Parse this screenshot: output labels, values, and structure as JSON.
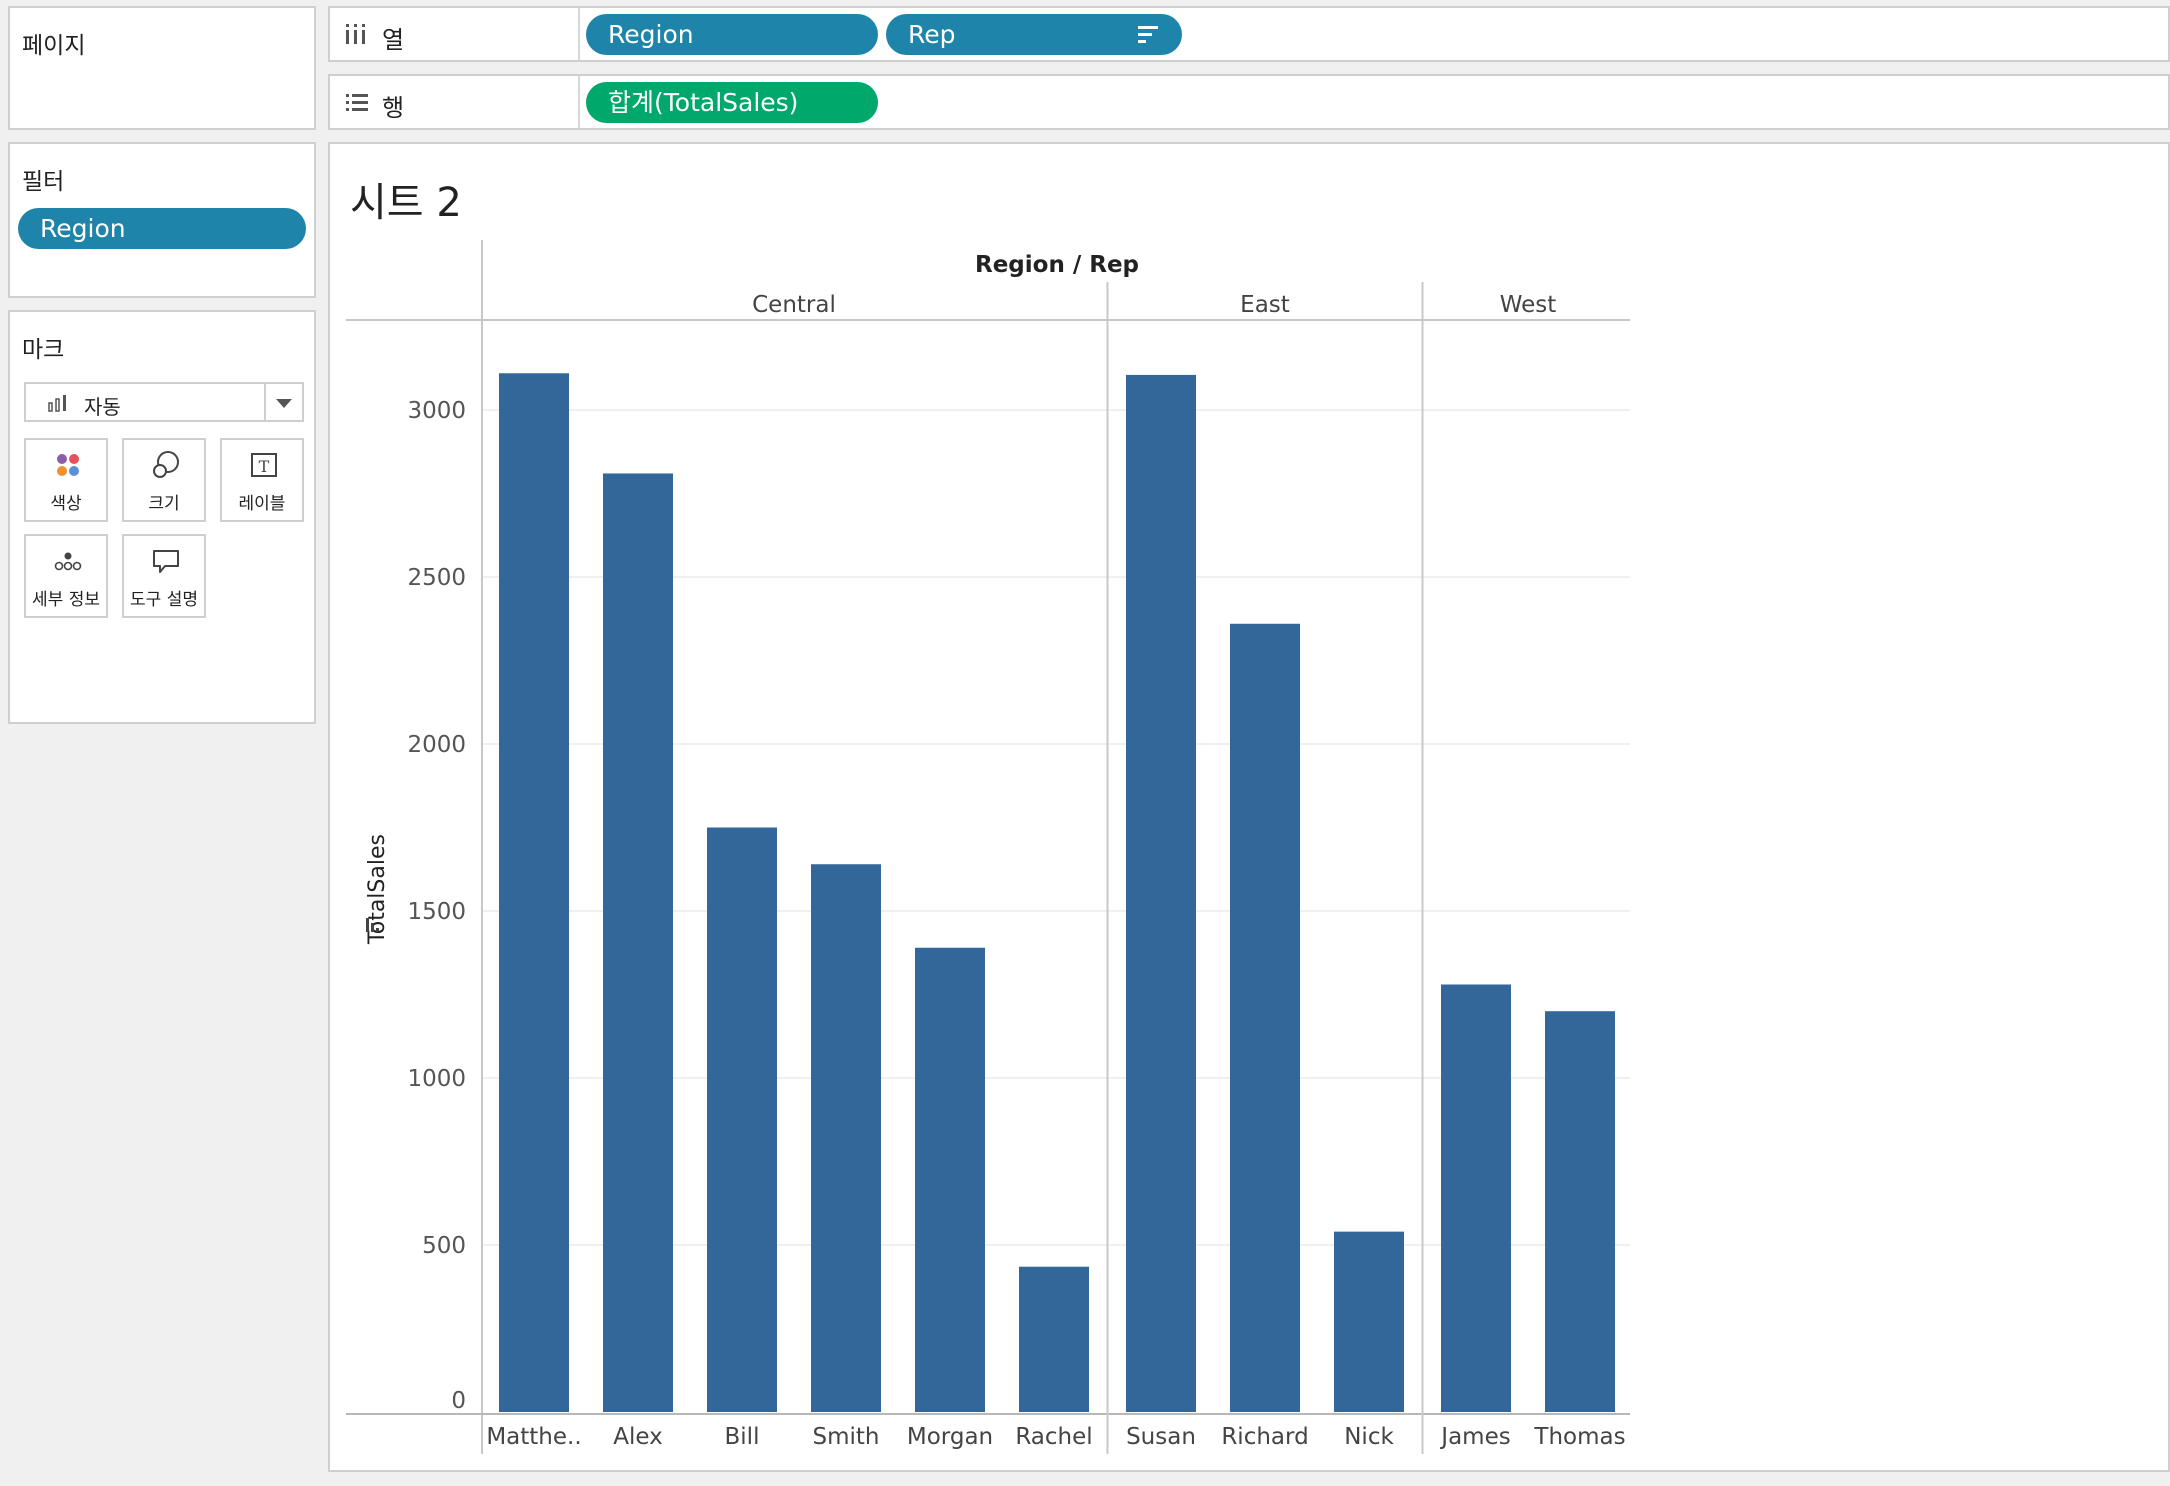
{
  "pages_shelf": {
    "title": "페이지"
  },
  "filters_shelf": {
    "title": "필터",
    "pills": [
      "Region"
    ]
  },
  "marks": {
    "title": "마크",
    "type": "자동",
    "type_icon": "bar-chart-icon",
    "cards": [
      {
        "label": "색상",
        "icon": "color-dots-icon"
      },
      {
        "label": "크기",
        "icon": "size-circles-icon"
      },
      {
        "label": "레이블",
        "icon": "text-label-icon"
      },
      {
        "label": "세부 정보",
        "icon": "detail-dots-icon"
      },
      {
        "label": "도구 설명",
        "icon": "tooltip-bubble-icon"
      }
    ]
  },
  "columns_shelf": {
    "label": "열",
    "icon": "columns-icon",
    "pills": [
      "Region",
      "Rep"
    ],
    "sort_icon": "sort-descending-icon"
  },
  "rows_shelf": {
    "label": "행",
    "icon": "rows-icon",
    "pills": [
      "합계(TotalSales)"
    ]
  },
  "sheet": {
    "title": "시트 2"
  },
  "colors": {
    "bar": "#336699",
    "pill_blue": "#1f84a9",
    "pill_green": "#00a86b"
  },
  "chart_data": {
    "type": "bar",
    "title": "",
    "header": "Region / Rep",
    "ylabel": "TotalSales",
    "ylim": [
      0,
      3250
    ],
    "yticks": [
      0,
      500,
      1000,
      1500,
      2000,
      2500,
      3000
    ],
    "grid": true,
    "groups": [
      {
        "name": "Central",
        "reps": [
          "Matthe..",
          "Alex",
          "Bill",
          "Smith",
          "Morgan",
          "Rachel"
        ],
        "values": [
          3110,
          2810,
          1750,
          1640,
          1390,
          435
        ]
      },
      {
        "name": "East",
        "reps": [
          "Susan",
          "Richard",
          "Nick"
        ],
        "values": [
          3105,
          2360,
          540
        ]
      },
      {
        "name": "West",
        "reps": [
          "James",
          "Thomas"
        ],
        "values": [
          1280,
          1200
        ]
      }
    ]
  }
}
